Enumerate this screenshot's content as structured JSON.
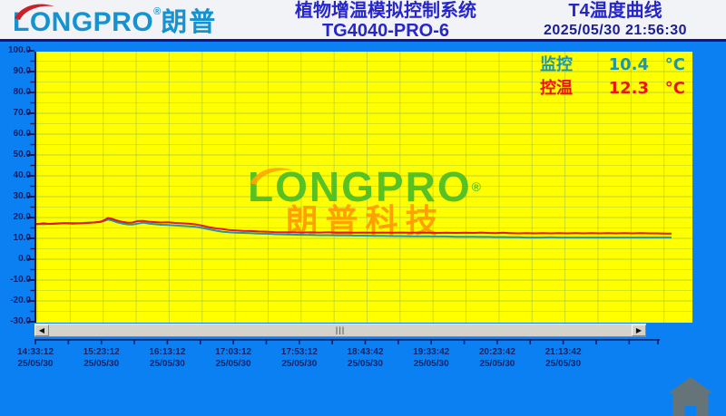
{
  "header": {
    "logo_brand": "LONGPRO",
    "logo_reg": "®",
    "logo_cn": "朗普",
    "title_line1": "植物增温模拟控制系统",
    "title_line2": "TG4040-PRO-6",
    "right_title": "T4温度曲线",
    "datetime": "2025/05/30 21:56:30"
  },
  "legend": {
    "rows": [
      {
        "label": "监控",
        "value": "10.4",
        "unit": "°C",
        "color": "#1e96ac"
      },
      {
        "label": "控温",
        "value": "12.3",
        "unit": "°C",
        "color": "#ee1404"
      }
    ]
  },
  "watermark": {
    "brand": "LONGPRO",
    "reg": "®",
    "cn": "朗普科技"
  },
  "scrollbar": {
    "left_arrow": "◀",
    "right_arrow": "▶",
    "grip": "|||"
  },
  "colors": {
    "body_blue": "#0b80f2",
    "plot_yellow": "#ffff00",
    "grid_green": "#a6c73c",
    "series_control_red": "#e41804",
    "series_monitor_teal": "#1e96ac",
    "axis_navy": "#1a1a5e"
  },
  "chart_data": {
    "type": "line",
    "title": "T4温度曲线",
    "ylabel": "°C",
    "ylim": [
      -30,
      100
    ],
    "ytick_step": 10,
    "grid": true,
    "legend_position": "top-right",
    "yticks": [
      "100.0",
      "90.0",
      "80.0",
      "70.0",
      "60.0",
      "50.0",
      "40.0",
      "30.0",
      "20.0",
      "10.0",
      "0.0",
      "-10.0",
      "-20.0",
      "-30.0"
    ],
    "xticks": [
      {
        "time": "14:33:12",
        "date": "25/05/30"
      },
      {
        "time": "15:23:12",
        "date": "25/05/30"
      },
      {
        "time": "16:13:12",
        "date": "25/05/30"
      },
      {
        "time": "17:03:12",
        "date": "25/05/30"
      },
      {
        "time": "17:53:12",
        "date": "25/05/30"
      },
      {
        "time": "18:43:42",
        "date": "25/05/30"
      },
      {
        "time": "19:33:42",
        "date": "25/05/30"
      },
      {
        "time": "20:23:42",
        "date": "25/05/30"
      },
      {
        "time": "21:13:42",
        "date": "25/05/30"
      }
    ],
    "series": [
      {
        "name": "控温",
        "current": 12.3,
        "color": "#e41804",
        "points": [
          [
            0,
            16.8
          ],
          [
            8,
            17.2
          ],
          [
            15,
            16.9
          ],
          [
            23,
            17.1
          ],
          [
            31,
            17.3
          ],
          [
            40,
            17.1
          ],
          [
            48,
            17.2
          ],
          [
            56,
            17.4
          ],
          [
            63,
            17.6
          ],
          [
            70,
            17.9
          ],
          [
            75,
            18.7
          ],
          [
            79,
            19.8
          ],
          [
            84,
            19.3
          ],
          [
            89,
            18.5
          ],
          [
            95,
            17.9
          ],
          [
            101,
            17.5
          ],
          [
            106,
            17.6
          ],
          [
            112,
            18.3
          ],
          [
            118,
            18.4
          ],
          [
            124,
            18.0
          ],
          [
            131,
            17.8
          ],
          [
            138,
            17.6
          ],
          [
            145,
            17.7
          ],
          [
            153,
            17.4
          ],
          [
            161,
            17.2
          ],
          [
            169,
            17.0
          ],
          [
            176,
            16.7
          ],
          [
            183,
            16.1
          ],
          [
            190,
            15.4
          ],
          [
            198,
            14.8
          ],
          [
            205,
            14.5
          ],
          [
            212,
            14.0
          ],
          [
            220,
            13.8
          ],
          [
            228,
            13.6
          ],
          [
            236,
            13.5
          ],
          [
            245,
            13.3
          ],
          [
            254,
            13.2
          ],
          [
            263,
            13.0
          ],
          [
            272,
            12.9
          ],
          [
            282,
            12.9
          ],
          [
            292,
            12.8
          ],
          [
            302,
            12.9
          ],
          [
            312,
            12.8
          ],
          [
            322,
            12.9
          ],
          [
            332,
            12.7
          ],
          [
            342,
            12.8
          ],
          [
            352,
            12.7
          ],
          [
            362,
            12.8
          ],
          [
            372,
            12.7
          ],
          [
            382,
            12.8
          ],
          [
            392,
            12.7
          ],
          [
            402,
            12.8
          ],
          [
            412,
            12.7
          ],
          [
            422,
            12.8
          ],
          [
            432,
            12.7
          ],
          [
            442,
            12.6
          ],
          [
            452,
            12.7
          ],
          [
            462,
            12.6
          ],
          [
            472,
            12.7
          ],
          [
            482,
            12.6
          ],
          [
            490,
            12.8
          ],
          [
            498,
            12.6
          ],
          [
            506,
            12.5
          ],
          [
            514,
            12.7
          ],
          [
            522,
            12.5
          ],
          [
            531,
            12.4
          ],
          [
            540,
            12.5
          ],
          [
            549,
            12.4
          ],
          [
            558,
            12.5
          ],
          [
            567,
            12.4
          ],
          [
            576,
            12.5
          ],
          [
            585,
            12.4
          ],
          [
            594,
            12.5
          ],
          [
            603,
            12.4
          ],
          [
            612,
            12.5
          ],
          [
            621,
            12.4
          ],
          [
            630,
            12.5
          ],
          [
            639,
            12.4
          ],
          [
            648,
            12.5
          ],
          [
            657,
            12.4
          ],
          [
            666,
            12.5
          ],
          [
            675,
            12.4
          ],
          [
            684,
            12.4
          ],
          [
            693,
            12.3
          ],
          [
            700,
            12.3
          ]
        ]
      },
      {
        "name": "监控",
        "current": 10.4,
        "color": "#1e96ac",
        "points": [
          [
            0,
            16.9
          ],
          [
            8,
            16.8
          ],
          [
            15,
            17.0
          ],
          [
            23,
            17.2
          ],
          [
            31,
            17.4
          ],
          [
            40,
            17.4
          ],
          [
            48,
            17.3
          ],
          [
            56,
            17.5
          ],
          [
            63,
            17.6
          ],
          [
            70,
            17.8
          ],
          [
            75,
            18.4
          ],
          [
            79,
            19.0
          ],
          [
            84,
            18.5
          ],
          [
            89,
            17.7
          ],
          [
            95,
            17.1
          ],
          [
            101,
            16.7
          ],
          [
            106,
            16.6
          ],
          [
            112,
            17.1
          ],
          [
            118,
            17.5
          ],
          [
            124,
            17.1
          ],
          [
            131,
            16.8
          ],
          [
            138,
            16.5
          ],
          [
            145,
            16.4
          ],
          [
            153,
            16.2
          ],
          [
            161,
            16.0
          ],
          [
            169,
            15.8
          ],
          [
            176,
            15.5
          ],
          [
            183,
            15.0
          ],
          [
            190,
            14.4
          ],
          [
            198,
            13.7
          ],
          [
            205,
            13.2
          ],
          [
            212,
            12.9
          ],
          [
            220,
            12.7
          ],
          [
            228,
            12.6
          ],
          [
            236,
            12.5
          ],
          [
            245,
            12.3
          ],
          [
            254,
            12.2
          ],
          [
            263,
            12.0
          ],
          [
            272,
            11.9
          ],
          [
            282,
            11.8
          ],
          [
            292,
            11.7
          ],
          [
            302,
            11.6
          ],
          [
            312,
            11.5
          ],
          [
            322,
            11.5
          ],
          [
            332,
            11.4
          ],
          [
            342,
            11.4
          ],
          [
            352,
            11.3
          ],
          [
            362,
            11.3
          ],
          [
            372,
            11.2
          ],
          [
            382,
            11.2
          ],
          [
            392,
            11.1
          ],
          [
            402,
            11.1
          ],
          [
            412,
            11.0
          ],
          [
            422,
            11.0
          ],
          [
            432,
            11.0
          ],
          [
            442,
            10.9
          ],
          [
            452,
            10.9
          ],
          [
            462,
            10.8
          ],
          [
            472,
            10.8
          ],
          [
            482,
            10.8
          ],
          [
            490,
            10.7
          ],
          [
            498,
            10.7
          ],
          [
            506,
            10.6
          ],
          [
            514,
            10.6
          ],
          [
            522,
            10.5
          ],
          [
            531,
            10.5
          ],
          [
            540,
            10.4
          ],
          [
            549,
            10.4
          ],
          [
            558,
            10.4
          ],
          [
            567,
            10.5
          ],
          [
            576,
            10.4
          ],
          [
            585,
            10.4
          ],
          [
            594,
            10.4
          ],
          [
            603,
            10.4
          ],
          [
            612,
            10.4
          ],
          [
            621,
            10.4
          ],
          [
            630,
            10.4
          ],
          [
            639,
            10.4
          ],
          [
            648,
            10.4
          ],
          [
            657,
            10.4
          ],
          [
            666,
            10.4
          ],
          [
            675,
            10.4
          ],
          [
            684,
            10.4
          ],
          [
            693,
            10.4
          ],
          [
            700,
            10.4
          ]
        ]
      }
    ]
  }
}
